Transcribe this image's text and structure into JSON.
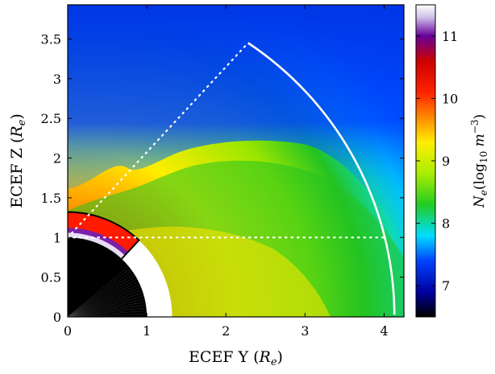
{
  "chart_data": {
    "type": "heatmap",
    "title": "",
    "xlabel": "ECEF Y (R_e)",
    "ylabel": "ECEF Z (R_e)",
    "xlim": [
      0,
      4.25
    ],
    "ylim": [
      0,
      3.93
    ],
    "x_ticks": [
      0,
      1,
      2,
      3,
      4
    ],
    "y_ticks": [
      0,
      0.5,
      1,
      1.5,
      2,
      2.5,
      3,
      3.5
    ],
    "x_tick_labels": [
      "0",
      "1",
      "2",
      "3",
      "4"
    ],
    "y_tick_labels": [
      "0",
      "0.5",
      "1",
      "1.5",
      "2",
      "2.5",
      "3",
      "3.5"
    ],
    "colorbar": {
      "label": "N_e (log10 m^-3)",
      "range": [
        6.5,
        11.5
      ],
      "ticks": [
        7,
        8,
        9,
        10,
        11
      ],
      "tick_labels": [
        "7",
        "8",
        "9",
        "10",
        "11"
      ],
      "colormap_stops": [
        {
          "v": 6.5,
          "color": "#000000"
        },
        {
          "v": 6.9,
          "color": "#0000a0"
        },
        {
          "v": 7.4,
          "color": "#0044ff"
        },
        {
          "v": 7.8,
          "color": "#00ddff"
        },
        {
          "v": 8.3,
          "color": "#22cc22"
        },
        {
          "v": 8.8,
          "color": "#aaee00"
        },
        {
          "v": 9.3,
          "color": "#ffee00"
        },
        {
          "v": 9.7,
          "color": "#ff8800"
        },
        {
          "v": 10.1,
          "color": "#ff2200"
        },
        {
          "v": 10.6,
          "color": "#cc0000"
        },
        {
          "v": 11.0,
          "color": "#660099"
        },
        {
          "v": 11.5,
          "color": "#ffffff"
        }
      ]
    },
    "overlays": {
      "earth_radius": 1.0,
      "inner_boundary_radius": 1.32,
      "white_arc_radius": 4.13,
      "dotted_horizontal_z": 1.0,
      "dotted_line_end": [
        2.28,
        3.45
      ],
      "wedge_angle_deg": [
        47,
        90
      ]
    },
    "colors": {
      "axis": "#000000",
      "overlay_white": "#ffffff",
      "earth": "#000000"
    }
  }
}
